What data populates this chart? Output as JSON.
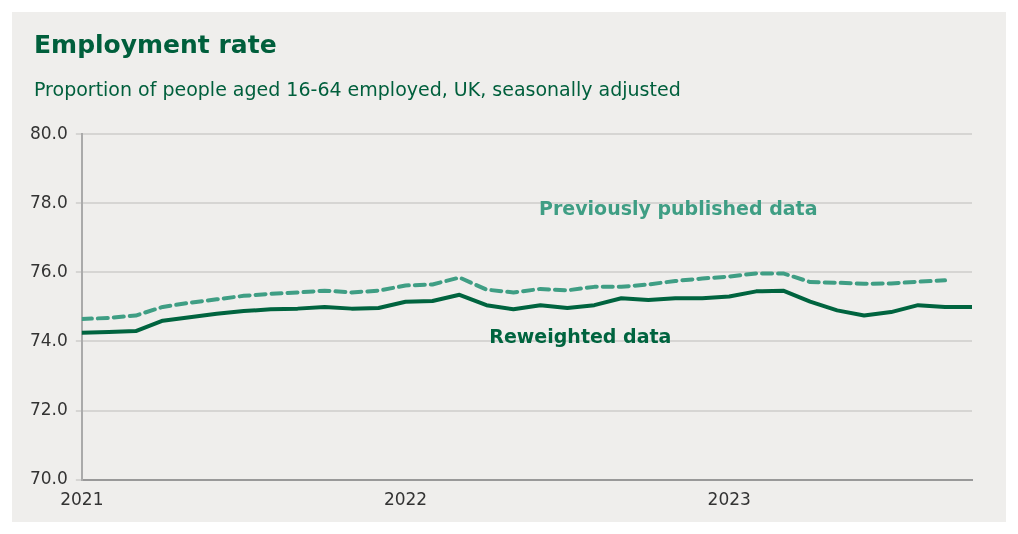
{
  "chart_data": {
    "type": "line",
    "title": "Employment rate",
    "subtitle": "Proportion of people aged 16-64 employed, UK, seasonally adjusted",
    "xlim": [
      "2021-01",
      "2023-10"
    ],
    "xticks": [
      "2021",
      "2022",
      "2023"
    ],
    "ylim": [
      70,
      80
    ],
    "yticks": [
      {
        "value": 70,
        "label": "70.0"
      },
      {
        "value": 72,
        "label": "72.0"
      },
      {
        "value": 74,
        "label": "74.0"
      },
      {
        "value": 76,
        "label": "76.0"
      },
      {
        "value": 78,
        "label": "78.0"
      },
      {
        "value": 80,
        "label": "80.0"
      }
    ],
    "grid": "y",
    "legend": false,
    "marker": "none",
    "series": [
      {
        "name": "Previously published data",
        "color": "#3f9e84",
        "line_style": "dashed",
        "x": [
          "2021-01",
          "2021-02",
          "2021-03",
          "2021-04",
          "2021-05",
          "2021-06",
          "2021-07",
          "2021-08",
          "2021-09",
          "2021-10",
          "2021-11",
          "2021-12",
          "2022-01",
          "2022-02",
          "2022-03",
          "2022-04",
          "2022-05",
          "2022-06",
          "2022-07",
          "2022-08",
          "2022-09",
          "2022-10",
          "2022-11",
          "2022-12",
          "2023-01",
          "2023-02",
          "2023-03",
          "2023-04",
          "2023-05",
          "2023-06",
          "2023-07",
          "2023-08",
          "2023-09"
        ],
        "values": [
          74.65,
          74.68,
          74.75,
          75.0,
          75.12,
          75.22,
          75.32,
          75.38,
          75.42,
          75.47,
          75.42,
          75.47,
          75.62,
          75.65,
          75.85,
          75.5,
          75.42,
          75.52,
          75.48,
          75.58,
          75.58,
          75.65,
          75.75,
          75.82,
          75.88,
          75.97,
          75.97,
          75.72,
          75.7,
          75.67,
          75.68,
          75.73,
          75.77
        ]
      },
      {
        "name": "Reweighted data",
        "color": "#00643f",
        "line_style": "solid",
        "x": [
          "2021-01",
          "2021-02",
          "2021-03",
          "2021-04",
          "2021-05",
          "2021-06",
          "2021-07",
          "2021-08",
          "2021-09",
          "2021-10",
          "2021-11",
          "2021-12",
          "2022-01",
          "2022-02",
          "2022-03",
          "2022-04",
          "2022-05",
          "2022-06",
          "2022-07",
          "2022-08",
          "2022-09",
          "2022-10",
          "2022-11",
          "2022-12",
          "2023-01",
          "2023-02",
          "2023-03",
          "2023-04",
          "2023-05",
          "2023-06",
          "2023-07",
          "2023-08",
          "2023-09",
          "2023-10"
        ],
        "values": [
          74.25,
          74.27,
          74.3,
          74.6,
          74.7,
          74.8,
          74.88,
          74.93,
          74.95,
          75.0,
          74.95,
          74.97,
          75.15,
          75.17,
          75.35,
          75.05,
          74.93,
          75.05,
          74.97,
          75.05,
          75.25,
          75.2,
          75.25,
          75.25,
          75.3,
          75.45,
          75.47,
          75.15,
          74.9,
          74.75,
          74.85,
          75.05,
          75.0,
          75.0
        ]
      }
    ]
  }
}
